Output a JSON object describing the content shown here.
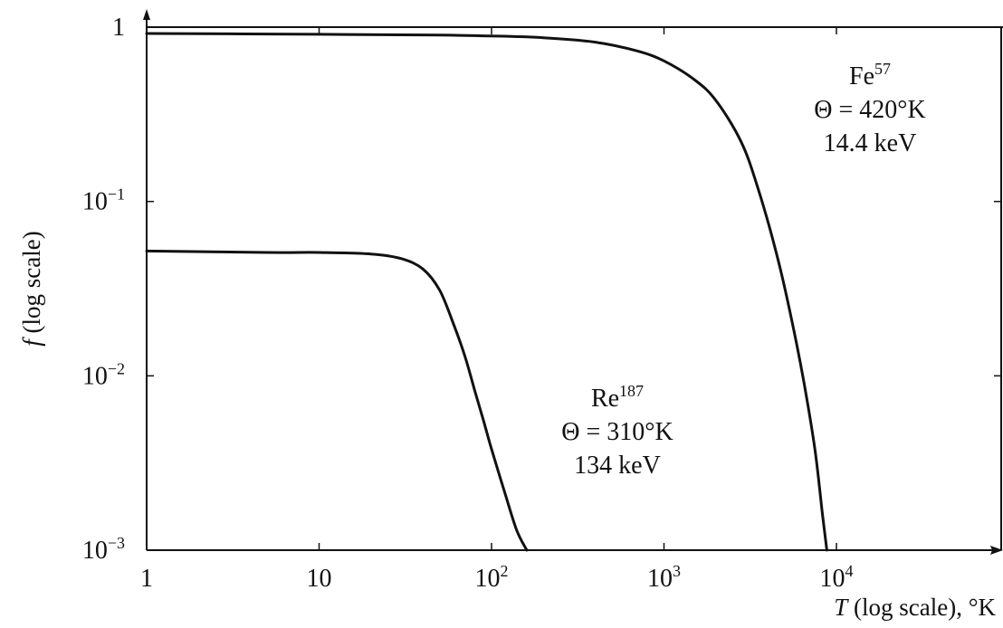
{
  "chart_data": {
    "type": "line",
    "log_x": true,
    "log_y": true,
    "xlim": [
      1,
      100000
    ],
    "ylim": [
      0.001,
      1
    ],
    "grid": false,
    "legend": "none",
    "xlabel": {
      "var": "T",
      "text": " (log scale), °K"
    },
    "ylabel": {
      "var": "f",
      "text": " (log scale)"
    },
    "x_ticks": [
      {
        "value": 1,
        "base": "1",
        "exp": ""
      },
      {
        "value": 10,
        "base": "10",
        "exp": ""
      },
      {
        "value": 100,
        "base": "10",
        "exp": "2"
      },
      {
        "value": 1000,
        "base": "10",
        "exp": "3"
      },
      {
        "value": 10000,
        "base": "10",
        "exp": "4"
      }
    ],
    "y_ticks": [
      {
        "value": 1,
        "base": "1",
        "exp": ""
      },
      {
        "value": 0.1,
        "base": "10",
        "exp": "−1"
      },
      {
        "value": 0.01,
        "base": "10",
        "exp": "−2"
      },
      {
        "value": 0.001,
        "base": "10",
        "exp": "−3"
      }
    ],
    "series": [
      {
        "x": [
          1,
          10,
          50,
          100,
          200,
          400,
          700,
          1000,
          1500,
          2000,
          2800,
          3500,
          4500,
          5500,
          6500,
          7500,
          8300,
          8800
        ],
        "y": [
          0.92,
          0.91,
          0.9,
          0.89,
          0.87,
          0.82,
          0.73,
          0.64,
          0.5,
          0.38,
          0.22,
          0.12,
          0.05,
          0.021,
          0.009,
          0.0038,
          0.0016,
          0.001
        ]
      },
      {
        "x": [
          1,
          5,
          10,
          20,
          30,
          40,
          50,
          60,
          70,
          80,
          90,
          100,
          120,
          140,
          160
        ],
        "y": [
          0.052,
          0.051,
          0.051,
          0.05,
          0.047,
          0.041,
          0.031,
          0.02,
          0.013,
          0.0082,
          0.0055,
          0.0038,
          0.0021,
          0.0013,
          0.001
        ]
      }
    ],
    "annotations": [
      {
        "lines": [
          {
            "base": "Fe",
            "exp": "57"
          },
          {
            "base": "Θ = 420°K",
            "exp": ""
          },
          {
            "base": "14.4 keV",
            "exp": ""
          }
        ]
      },
      {
        "lines": [
          {
            "base": "Re",
            "exp": "187"
          },
          {
            "base": "Θ = 310°K",
            "exp": ""
          },
          {
            "base": "134 keV",
            "exp": ""
          }
        ]
      }
    ]
  }
}
